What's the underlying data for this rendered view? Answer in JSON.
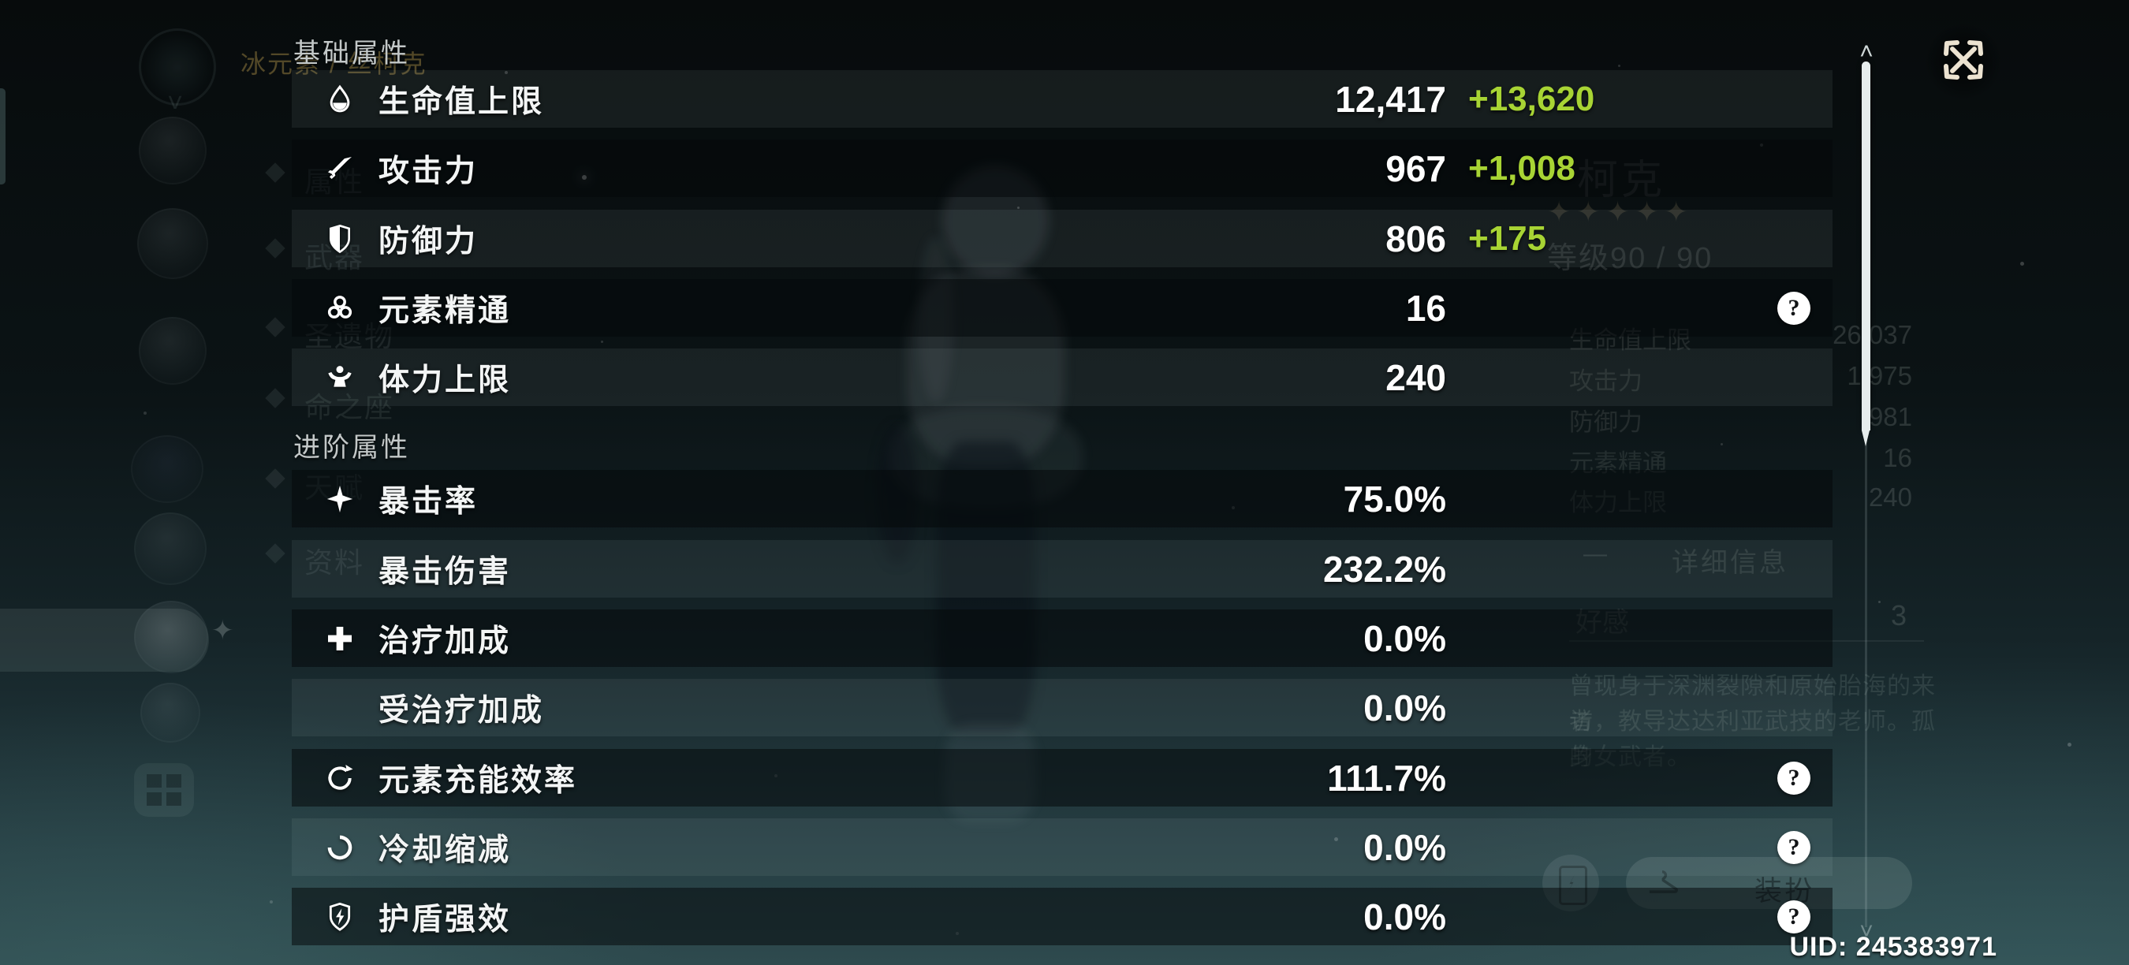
{
  "panel": {
    "sections": [
      {
        "title": "基础属性",
        "rows": [
          {
            "icon": "hp-drop",
            "label": "生命值上限",
            "value": "12,417",
            "bonus": "+13,620",
            "help": false
          },
          {
            "icon": "attack-sword",
            "label": "攻击力",
            "value": "967",
            "bonus": "+1,008",
            "help": false
          },
          {
            "icon": "defense-shield",
            "label": "防御力",
            "value": "806",
            "bonus": "+175",
            "help": false
          },
          {
            "icon": "elemental-mastery",
            "label": "元素精通",
            "value": "16",
            "bonus": "",
            "help": true
          },
          {
            "icon": "stamina",
            "label": "体力上限",
            "value": "240",
            "bonus": "",
            "help": false
          }
        ]
      },
      {
        "title": "进阶属性",
        "rows": [
          {
            "icon": "crit-rate",
            "label": "暴击率",
            "value": "75.0%",
            "bonus": "",
            "help": false
          },
          {
            "icon": "",
            "label": "暴击伤害",
            "value": "232.2%",
            "bonus": "",
            "help": false
          },
          {
            "icon": "healing-bonus",
            "label": "治疗加成",
            "value": "0.0%",
            "bonus": "",
            "help": false
          },
          {
            "icon": "",
            "label": "受治疗加成",
            "value": "0.0%",
            "bonus": "",
            "help": false
          },
          {
            "icon": "energy-recharge",
            "label": "元素充能效率",
            "value": "111.7%",
            "bonus": "",
            "help": true
          },
          {
            "icon": "cooldown",
            "label": "冷却缩减",
            "value": "0.0%",
            "bonus": "",
            "help": true
          },
          {
            "icon": "shield-strength",
            "label": "护盾强效",
            "value": "0.0%",
            "bonus": "",
            "help": true
          }
        ]
      }
    ],
    "help_glyph": "?"
  },
  "colors": {
    "bonus_green": "#a8d434"
  },
  "uid": {
    "text": "UID: 245383971"
  },
  "scrollbar": {
    "up_glyph": "˄",
    "down_glyph": "˅"
  },
  "background": {
    "element_caption": "冰元素 / 丝柯克",
    "name_fragment": "柯克",
    "stars": "✦✦✦✦✦",
    "level": "等级90 / 90",
    "stats": [
      {
        "label": "生命值上限",
        "value": "26,037"
      },
      {
        "label": "攻击力",
        "value": "1,975"
      },
      {
        "label": "防御力",
        "value": "981"
      },
      {
        "label": "元素精通",
        "value": "16"
      },
      {
        "label": "体力上限",
        "value": "240"
      }
    ],
    "collapse_dash": "—",
    "details_button": "详细信息",
    "friendship_label": "好感",
    "friendship_value": "3",
    "bio_lines": [
      "曾现身于深渊裂隙和原始胎海的来访",
      "者，教导达达利亚武技的老师。孤身",
      "的女武者。"
    ],
    "outfit_button": "装扮",
    "menu_items": [
      "属性",
      "武器",
      "圣遗物",
      "命之座",
      "天赋",
      "资料"
    ],
    "sparkle_glyph": "✦",
    "chevron_glyph": "˅"
  }
}
